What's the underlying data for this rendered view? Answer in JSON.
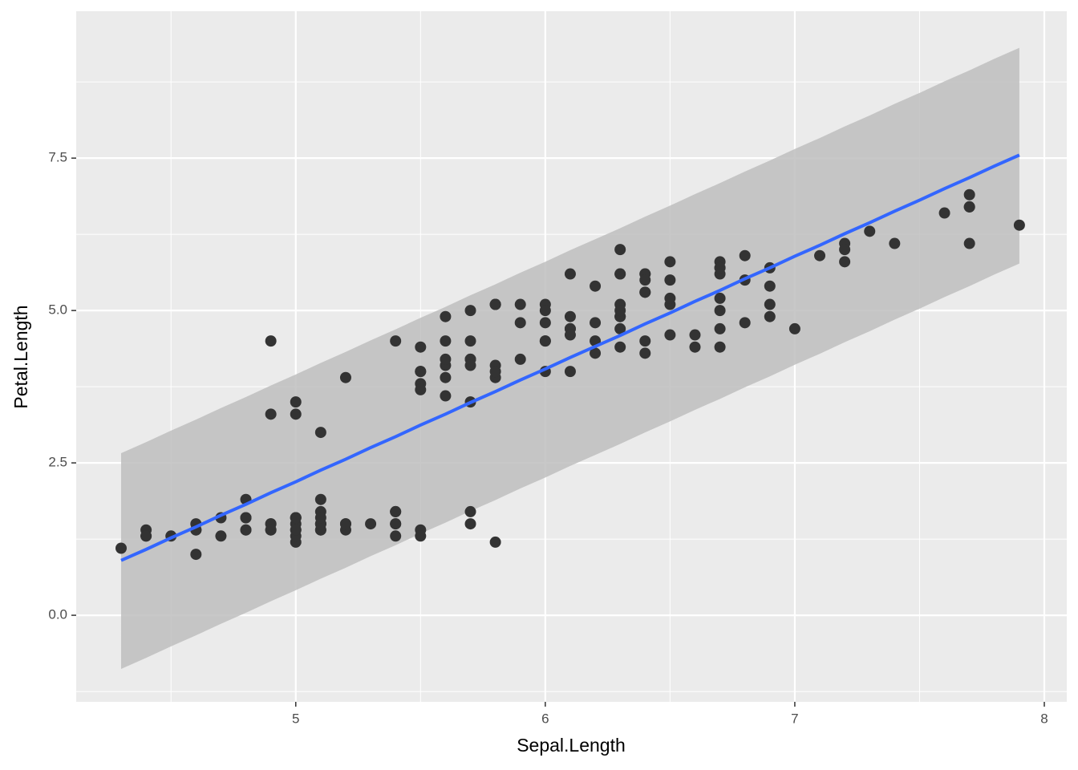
{
  "chart_data": {
    "type": "scatter",
    "x_label": "Sepal.Length",
    "y_label": "Petal.Length",
    "xlim": [
      4.12,
      8.09
    ],
    "ylim": [
      -1.42,
      9.91
    ],
    "xticks": [
      5,
      6,
      7,
      8
    ],
    "yticks": [
      {
        "value": 0,
        "label": "0.0"
      },
      2.5,
      {
        "value": 5,
        "label": "5.0"
      },
      7.5
    ],
    "minor_xticks": [
      4.5,
      5.5,
      6.5,
      7.5
    ],
    "minor_yticks": [
      -1.25,
      1.25,
      3.75,
      6.25,
      8.75
    ],
    "grid": true,
    "point_color": "#333333",
    "x": [
      5.1,
      4.9,
      4.7,
      4.6,
      5.0,
      5.4,
      4.6,
      5.0,
      4.4,
      4.9,
      5.4,
      4.8,
      4.8,
      4.3,
      5.8,
      5.7,
      5.4,
      5.1,
      5.7,
      5.1,
      5.4,
      5.1,
      4.6,
      5.1,
      4.8,
      5.0,
      5.0,
      5.2,
      5.2,
      4.7,
      4.8,
      5.4,
      5.2,
      5.5,
      4.9,
      5.0,
      5.5,
      4.9,
      4.4,
      5.1,
      5.0,
      4.5,
      4.4,
      5.0,
      5.1,
      4.8,
      5.1,
      4.6,
      5.3,
      5.0,
      7.0,
      6.4,
      6.9,
      5.5,
      6.5,
      5.7,
      6.3,
      4.9,
      6.6,
      5.2,
      5.0,
      5.9,
      6.0,
      6.1,
      5.6,
      6.7,
      5.6,
      5.8,
      6.2,
      5.6,
      5.9,
      6.1,
      6.3,
      6.1,
      6.4,
      6.6,
      6.8,
      6.7,
      6.0,
      5.7,
      5.5,
      5.5,
      5.8,
      6.0,
      5.4,
      6.0,
      6.7,
      6.3,
      5.6,
      5.5,
      5.5,
      6.1,
      5.8,
      5.0,
      5.6,
      5.7,
      5.7,
      6.2,
      5.1,
      5.7,
      6.3,
      5.8,
      7.1,
      6.3,
      6.5,
      7.6,
      4.9,
      7.3,
      6.7,
      7.2,
      6.5,
      6.4,
      6.8,
      5.7,
      5.8,
      6.4,
      6.5,
      7.7,
      7.7,
      6.0,
      6.9,
      5.6,
      7.7,
      6.3,
      6.7,
      7.2,
      6.2,
      6.1,
      6.4,
      7.2,
      7.4,
      7.9,
      6.4,
      6.3,
      6.1,
      7.7,
      6.3,
      6.4,
      6.0,
      6.9,
      6.7,
      6.9,
      5.8,
      6.8,
      6.7,
      6.7,
      6.3,
      6.5,
      6.2,
      5.9
    ],
    "y": [
      1.4,
      1.4,
      1.3,
      1.5,
      1.4,
      1.7,
      1.4,
      1.5,
      1.4,
      1.5,
      1.5,
      1.6,
      1.4,
      1.1,
      1.2,
      1.5,
      1.3,
      1.4,
      1.7,
      1.5,
      1.7,
      1.5,
      1.0,
      1.7,
      1.9,
      1.6,
      1.6,
      1.5,
      1.4,
      1.6,
      1.6,
      1.5,
      1.5,
      1.4,
      1.5,
      1.2,
      1.3,
      1.4,
      1.3,
      1.5,
      1.3,
      1.3,
      1.3,
      1.6,
      1.9,
      1.4,
      1.6,
      1.4,
      1.5,
      1.4,
      4.7,
      4.5,
      4.9,
      4.0,
      4.6,
      4.5,
      4.7,
      3.3,
      4.6,
      3.9,
      3.5,
      4.2,
      4.0,
      4.7,
      3.6,
      4.4,
      4.5,
      4.1,
      4.5,
      3.9,
      4.8,
      4.0,
      4.9,
      4.7,
      4.3,
      4.4,
      4.8,
      5.0,
      4.5,
      3.5,
      3.8,
      3.7,
      3.9,
      5.1,
      4.5,
      4.5,
      4.7,
      4.4,
      4.1,
      4.0,
      4.4,
      4.6,
      4.0,
      3.3,
      4.2,
      4.2,
      4.2,
      4.3,
      3.0,
      4.1,
      6.0,
      5.1,
      5.9,
      5.6,
      5.8,
      6.6,
      4.5,
      6.3,
      5.8,
      6.1,
      5.1,
      5.3,
      5.5,
      5.0,
      5.1,
      5.3,
      5.5,
      6.7,
      6.9,
      5.0,
      5.7,
      4.9,
      6.7,
      4.9,
      5.7,
      6.0,
      4.8,
      4.9,
      5.6,
      5.8,
      6.1,
      6.4,
      5.6,
      5.1,
      5.6,
      6.1,
      5.6,
      5.5,
      4.8,
      5.4,
      5.6,
      5.1,
      5.1,
      5.9,
      5.7,
      5.2,
      5.0,
      5.2,
      5.4,
      5.1
    ],
    "fit": {
      "color": "#3366ff",
      "band_color": "#bebebe",
      "x": [
        4.3,
        4.4,
        4.5,
        4.6,
        4.7,
        4.8,
        4.9,
        5.0,
        5.1,
        5.2,
        5.3,
        5.4,
        5.5,
        5.6,
        5.7,
        5.8,
        5.9,
        6.0,
        6.1,
        6.2,
        6.3,
        6.4,
        6.5,
        6.6,
        6.7,
        6.8,
        6.9,
        7.0,
        7.1,
        7.2,
        7.3,
        7.4,
        7.5,
        7.6,
        7.7,
        7.8,
        7.9
      ],
      "y": [
        0.9,
        1.08,
        1.27,
        1.45,
        1.64,
        1.82,
        2.01,
        2.19,
        2.38,
        2.56,
        2.75,
        2.93,
        3.12,
        3.3,
        3.49,
        3.67,
        3.86,
        4.04,
        4.23,
        4.41,
        4.59,
        4.78,
        4.96,
        5.15,
        5.33,
        5.52,
        5.7,
        5.89,
        6.07,
        6.26,
        6.44,
        6.63,
        6.81,
        7.0,
        7.18,
        7.37,
        7.55
      ],
      "upper": [
        2.66,
        2.84,
        3.03,
        3.21,
        3.4,
        3.58,
        3.77,
        3.95,
        4.14,
        4.32,
        4.51,
        4.69,
        4.88,
        5.06,
        5.25,
        5.43,
        5.62,
        5.8,
        5.99,
        6.17,
        6.35,
        6.54,
        6.72,
        6.91,
        7.09,
        7.28,
        7.46,
        7.65,
        7.83,
        8.02,
        8.2,
        8.39,
        8.57,
        8.76,
        8.94,
        9.13,
        9.31
      ],
      "lower": [
        -0.88,
        -0.7,
        -0.51,
        -0.33,
        -0.14,
        0.04,
        0.23,
        0.41,
        0.6,
        0.78,
        0.97,
        1.15,
        1.34,
        1.52,
        1.71,
        1.89,
        2.08,
        2.26,
        2.45,
        2.63,
        2.81,
        3.0,
        3.18,
        3.37,
        3.55,
        3.74,
        3.92,
        4.11,
        4.29,
        4.48,
        4.66,
        4.85,
        5.03,
        5.22,
        5.4,
        5.59,
        5.77
      ]
    }
  }
}
